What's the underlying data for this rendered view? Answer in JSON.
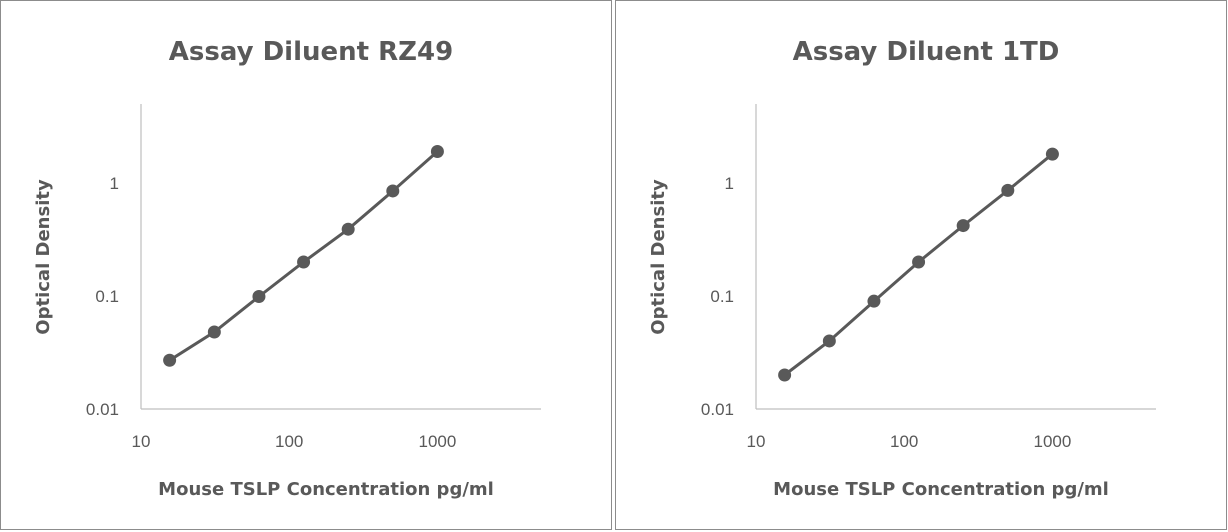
{
  "chart_data": [
    {
      "type": "line",
      "title": "Assay Diluent RZ49",
      "xlabel": "Mouse TSLP Concentration pg/ml",
      "ylabel": "Optical Density",
      "xscale": "log",
      "yscale": "log",
      "xlim": [
        10,
        5000
      ],
      "ylim": [
        0.01,
        5
      ],
      "x_ticks": [
        "10",
        "100",
        "1000"
      ],
      "y_ticks": [
        "0.01",
        "0.1",
        "1"
      ],
      "grid": false,
      "series": [
        {
          "x": [
            15.6,
            31.25,
            62.5,
            125,
            250,
            500,
            1000
          ],
          "y": [
            0.027,
            0.048,
            0.099,
            0.2,
            0.39,
            0.85,
            1.9
          ],
          "color": "#595959"
        }
      ]
    },
    {
      "type": "line",
      "title": "Assay Diluent 1TD",
      "xlabel": "Mouse TSLP Concentration pg/ml",
      "ylabel": "Optical Density",
      "xscale": "log",
      "yscale": "log",
      "xlim": [
        10,
        5000
      ],
      "ylim": [
        0.01,
        5
      ],
      "x_ticks": [
        "10",
        "100",
        "1000"
      ],
      "y_ticks": [
        "0.01",
        "0.1",
        "1"
      ],
      "grid": false,
      "series": [
        {
          "x": [
            15.6,
            31.25,
            62.5,
            125,
            250,
            500,
            1000
          ],
          "y": [
            0.02,
            0.04,
            0.09,
            0.2,
            0.42,
            0.86,
            1.8
          ],
          "color": "#595959"
        }
      ]
    }
  ]
}
